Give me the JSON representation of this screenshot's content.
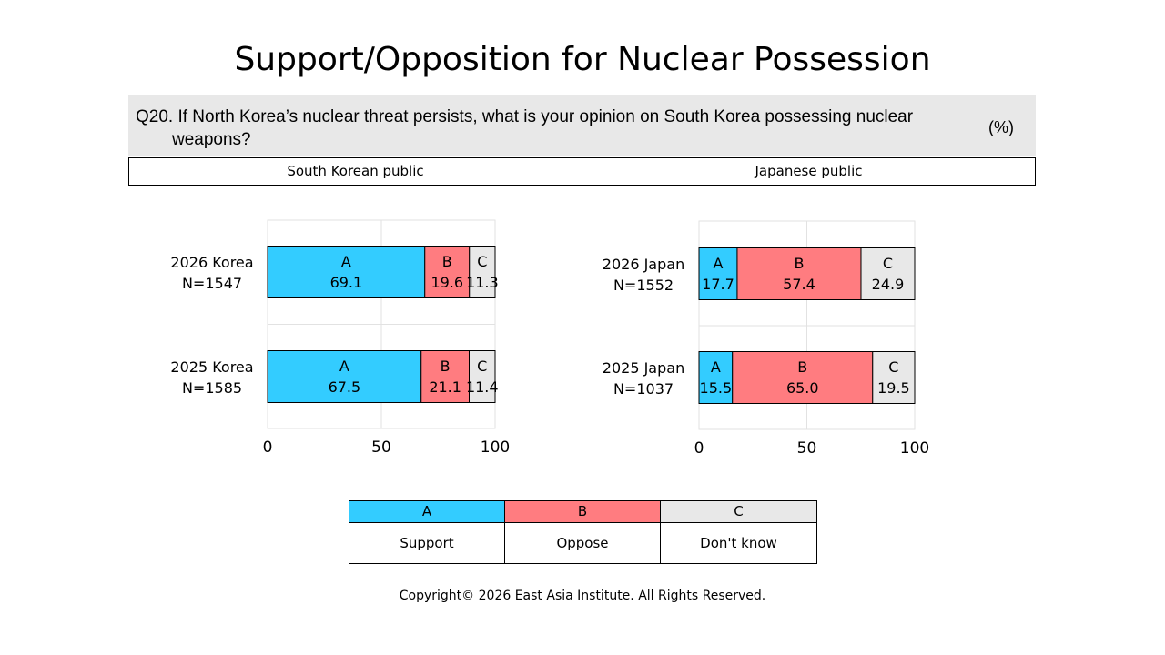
{
  "title": "Support/Opposition for Nuclear Possession",
  "question": {
    "text": "Q20.  If North Korea’s nuclear threat persists, what is your opinion on South Korea possessing nuclear weapons?",
    "unit": "(%)"
  },
  "groups": {
    "left": "South Korean public",
    "right": "Japanese public"
  },
  "colors": {
    "A": "#33ccff",
    "B": "#ff7c80",
    "C": "#e8e8e8"
  },
  "legend": {
    "keys": [
      "A",
      "B",
      "C"
    ],
    "labels": [
      "Support",
      "Oppose",
      "Don't know"
    ]
  },
  "copyright": "Copyright© 2026 East Asia Institute. All Rights Reserved.",
  "chart_data": [
    {
      "type": "bar",
      "orientation": "horizontal",
      "stacked": true,
      "categories": [
        "2026 Korea\nN=1547",
        "2025 Korea\nN=1585"
      ],
      "series": [
        {
          "name": "A",
          "values": [
            69.1,
            67.5
          ]
        },
        {
          "name": "B",
          "values": [
            19.6,
            21.1
          ]
        },
        {
          "name": "C",
          "values": [
            11.3,
            11.4
          ]
        }
      ],
      "xlim": [
        0,
        100
      ],
      "xticks": [
        0,
        50,
        100
      ]
    },
    {
      "type": "bar",
      "orientation": "horizontal",
      "stacked": true,
      "categories": [
        "2026 Japan\nN=1552",
        "2025 Japan\nN=1037"
      ],
      "series": [
        {
          "name": "A",
          "values": [
            17.7,
            15.5
          ]
        },
        {
          "name": "B",
          "values": [
            57.4,
            65.0
          ]
        },
        {
          "name": "C",
          "values": [
            24.9,
            19.5
          ]
        }
      ],
      "xlim": [
        0,
        100
      ],
      "xticks": [
        0,
        50,
        100
      ]
    }
  ]
}
